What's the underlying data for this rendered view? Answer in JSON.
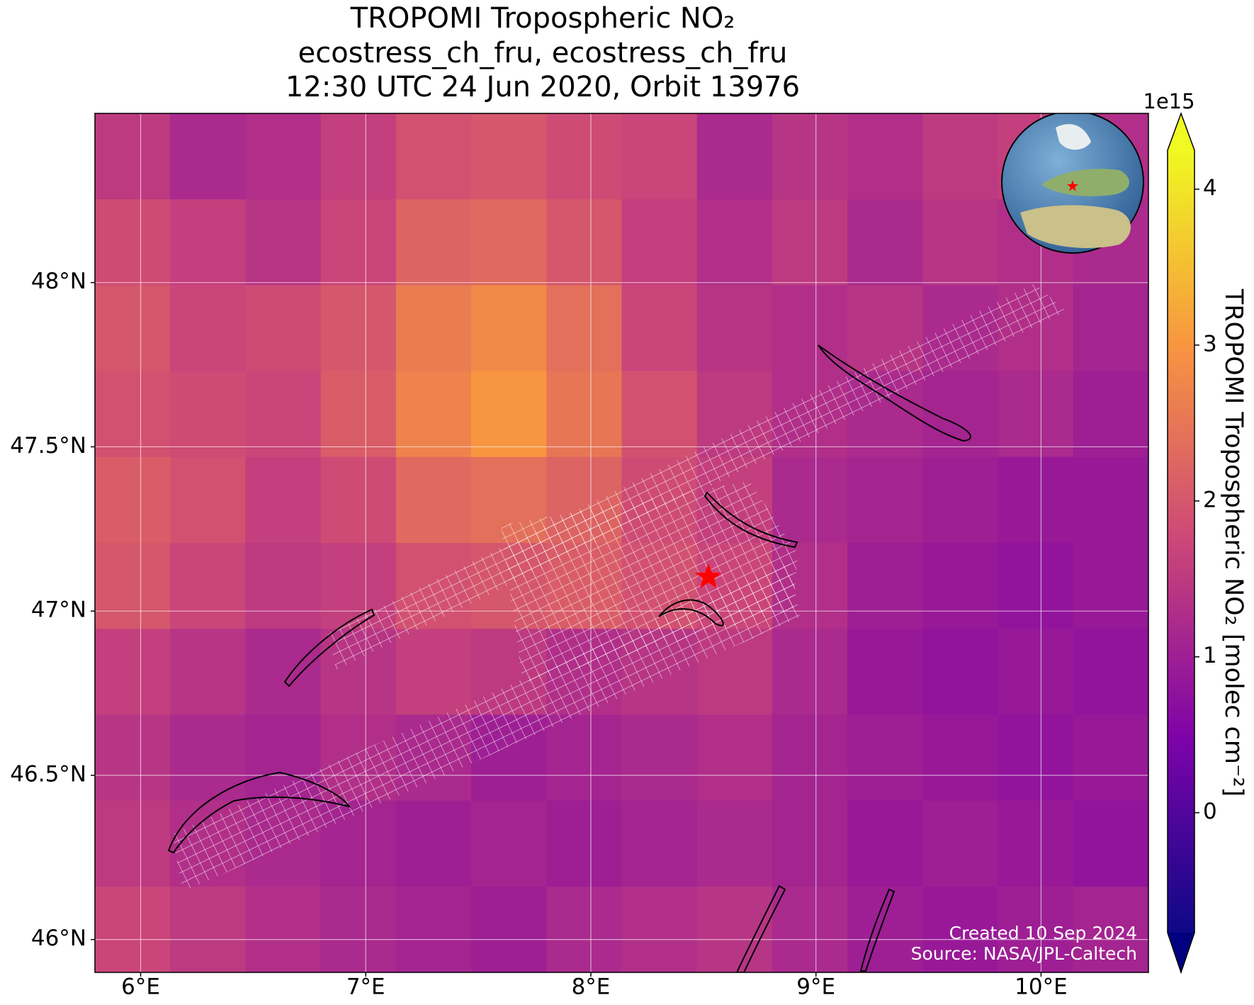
{
  "chart_data": {
    "type": "heatmap",
    "title_lines": [
      "TROPOMI Tropospheric NO₂",
      "ecostress_ch_fru, ecostress_ch_fru",
      "12:30 UTC 24 Jun 2020, Orbit 13976"
    ],
    "colormap": "plasma",
    "xlim": [
      5.797,
      10.477
    ],
    "ylim": [
      45.9,
      48.515
    ],
    "xticks": [
      {
        "value": 6,
        "label": "6°E"
      },
      {
        "value": 7,
        "label": "7°E"
      },
      {
        "value": 8,
        "label": "8°E"
      },
      {
        "value": 9,
        "label": "9°E"
      },
      {
        "value": 10,
        "label": "10°E"
      }
    ],
    "yticks": [
      {
        "value": 46,
        "label": "46°N"
      },
      {
        "value": 46.5,
        "label": "46.5°N"
      },
      {
        "value": 47,
        "label": "47°N"
      },
      {
        "value": 47.5,
        "label": "47.5°N"
      },
      {
        "value": 48,
        "label": "48°N"
      }
    ],
    "grid": true,
    "values": [
      [
        1.5,
        1.2,
        1.3,
        1.6,
        1.9,
        2.0,
        1.8,
        1.7,
        1.2,
        1.4,
        1.3,
        1.5,
        1.6,
        1.3
      ],
      [
        1.8,
        1.6,
        1.4,
        1.7,
        2.2,
        2.3,
        2.0,
        1.6,
        1.3,
        1.5,
        1.2,
        1.4,
        1.3,
        1.2
      ],
      [
        2.0,
        1.7,
        1.8,
        2.0,
        2.6,
        2.8,
        2.4,
        1.7,
        1.4,
        1.3,
        1.4,
        1.2,
        1.3,
        1.1
      ],
      [
        1.9,
        1.8,
        1.7,
        2.1,
        2.7,
        3.0,
        2.5,
        1.9,
        1.5,
        1.3,
        1.2,
        1.1,
        1.2,
        1.0
      ],
      [
        2.1,
        1.9,
        1.6,
        1.8,
        2.3,
        2.4,
        2.2,
        1.8,
        1.6,
        1.2,
        1.1,
        1.0,
        0.9,
        0.9
      ],
      [
        2.0,
        1.7,
        1.5,
        1.6,
        1.9,
        2.0,
        2.1,
        1.9,
        1.7,
        1.3,
        1.0,
        0.9,
        0.8,
        0.9
      ],
      [
        1.6,
        1.4,
        1.2,
        1.4,
        1.6,
        1.5,
        1.3,
        1.4,
        1.5,
        1.2,
        0.9,
        0.8,
        0.9,
        0.8
      ],
      [
        1.4,
        1.2,
        1.1,
        1.3,
        1.2,
        1.0,
        1.1,
        1.2,
        1.3,
        1.1,
        1.0,
        0.9,
        0.8,
        0.9
      ],
      [
        1.5,
        1.3,
        1.2,
        1.1,
        1.0,
        1.1,
        1.0,
        1.1,
        1.2,
        1.1,
        0.9,
        1.0,
        0.9,
        0.8
      ],
      [
        1.7,
        1.5,
        1.3,
        1.2,
        1.1,
        1.0,
        1.2,
        1.3,
        1.4,
        1.2,
        1.0,
        0.9,
        1.0,
        1.1
      ]
    ],
    "clim": [
      -0.77,
      4.25
    ],
    "colorbar_ticks": [
      0,
      1,
      2,
      3,
      4
    ],
    "colorbar_offset": "1e15",
    "colorbar_label": "TROPOMI Tropospheric NO₂ [molec cm⁻²]",
    "credits": [
      "Created 10 Sep 2024",
      "Source: NASA/JPL-Caltech"
    ]
  }
}
